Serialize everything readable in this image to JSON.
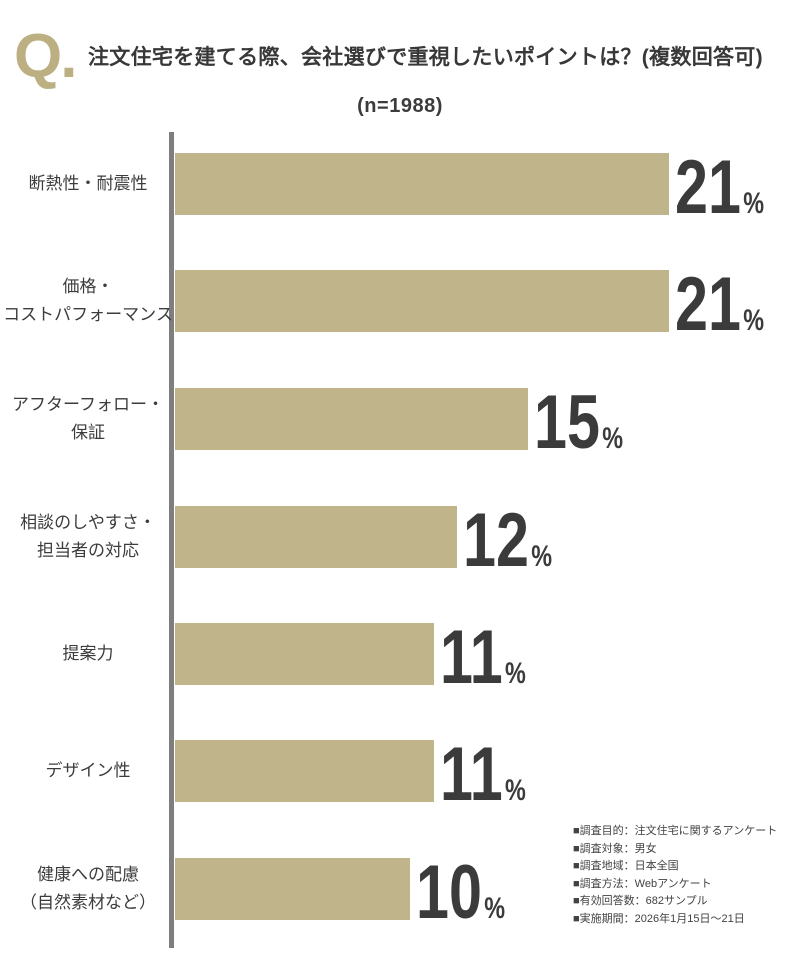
{
  "header": {
    "q_mark": "Q.",
    "title": "注文住宅を建てる際、会社選びで重視したいポイントは？(複数回答可)",
    "sample_size": "(n=1988)"
  },
  "colors": {
    "bar": "#C0B48B",
    "accent": "#BCB083",
    "axis": "#7E7E7E",
    "value_text": "#3B3B3B"
  },
  "chart_data": {
    "type": "bar",
    "orientation": "horizontal",
    "title": "注文住宅を建てる際、会社選びで重視したいポイントは？(複数回答可)",
    "sample_note": "(n=1988)",
    "unit": "%",
    "xlim": [
      0,
      21
    ],
    "grid": false,
    "legend": false,
    "categories": [
      "断熱性・耐震性",
      "価格・コストパフォーマンス",
      "アフターフォロー・保証",
      "相談のしやすさ・担当者の対応",
      "提案力",
      "デザイン性",
      "健康への配慮（自然素材など）"
    ],
    "values": [
      21,
      21,
      15,
      12,
      11,
      11,
      10
    ],
    "items": [
      {
        "label_lines": [
          "断熱性・耐震性"
        ],
        "value": 21
      },
      {
        "label_lines": [
          "価格・",
          "コストパフォーマンス"
        ],
        "value": 21
      },
      {
        "label_lines": [
          "アフターフォロー・",
          "保証"
        ],
        "value": 15
      },
      {
        "label_lines": [
          "相談のしやすさ・",
          "担当者の対応"
        ],
        "value": 12
      },
      {
        "label_lines": [
          "提案力"
        ],
        "value": 11
      },
      {
        "label_lines": [
          "デザイン性"
        ],
        "value": 11
      },
      {
        "label_lines": [
          "健康への配慮",
          "（自然素材など）"
        ],
        "value": 10
      }
    ]
  },
  "survey_notes": [
    "■調査目的：注文住宅に関するアンケート",
    "■調査対象：男女",
    "■調査地域：日本全国",
    "■調査方法：Webアンケート",
    "■有効回答数：682サンプル",
    "■実施期間：2026年1月15日～21日"
  ]
}
